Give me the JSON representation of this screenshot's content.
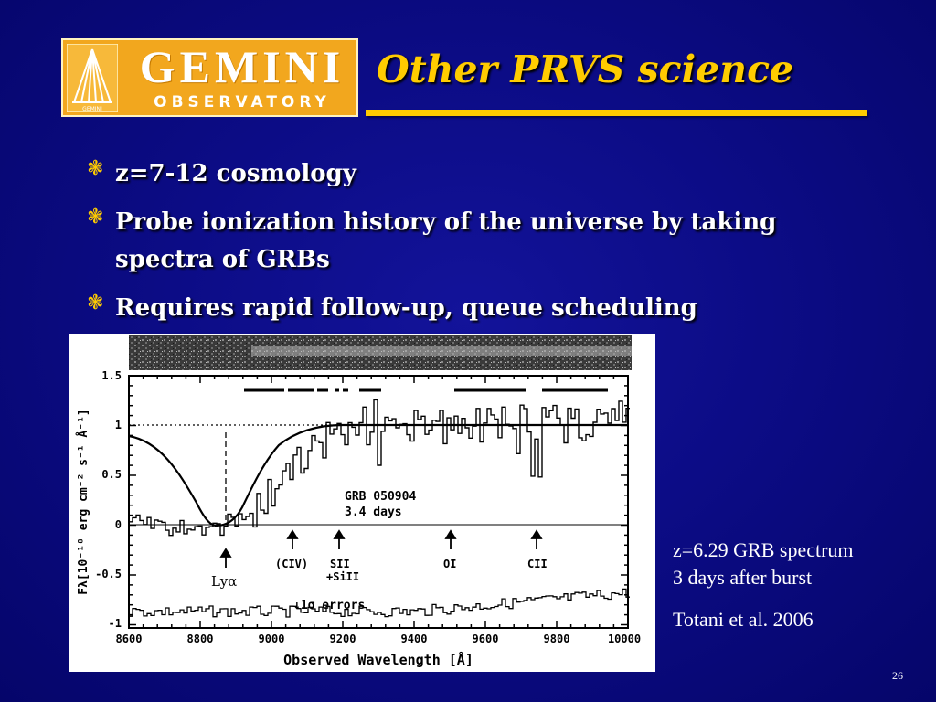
{
  "logo": {
    "name": "GEMINI",
    "subtitle": "OBSERVATORY",
    "mini_label": "GEMINI"
  },
  "title": "Other PRVS science",
  "bullets": [
    "z=7-12 cosmology",
    "Probe ionization history of the universe by taking spectra of GRBs",
    "Requires rapid follow-up, queue scheduling"
  ],
  "figure": {
    "xlabel": "Observed Wavelength [Å]",
    "ylabel": "Fλ[10⁻¹⁸ erg cm⁻² s⁻¹ Å⁻¹]",
    "xticks": [
      "8600",
      "8800",
      "9000",
      "9200",
      "9400",
      "9600",
      "9800",
      "10000"
    ],
    "yticks": [
      "1.5",
      "1",
      "0.5",
      "0",
      "-0.5",
      "-1"
    ],
    "annotation_line1": "GRB 050904",
    "annotation_line2": "3.4 days",
    "lya_label": "Lyα",
    "civ_label": "(CIV)",
    "sii_label1": "SII",
    "sii_label2": "+SiII",
    "oi_label": "OI",
    "cii_label": "CII",
    "errors_label": "↓1σ errors"
  },
  "caption": {
    "line1": "z=6.29 GRB spectrum",
    "line2": "3 days after burst",
    "ref": "Totani et al. 2006"
  },
  "page_number": "26",
  "colors": {
    "accent": "#ffcc00",
    "logo_bg": "#f2a71e"
  }
}
